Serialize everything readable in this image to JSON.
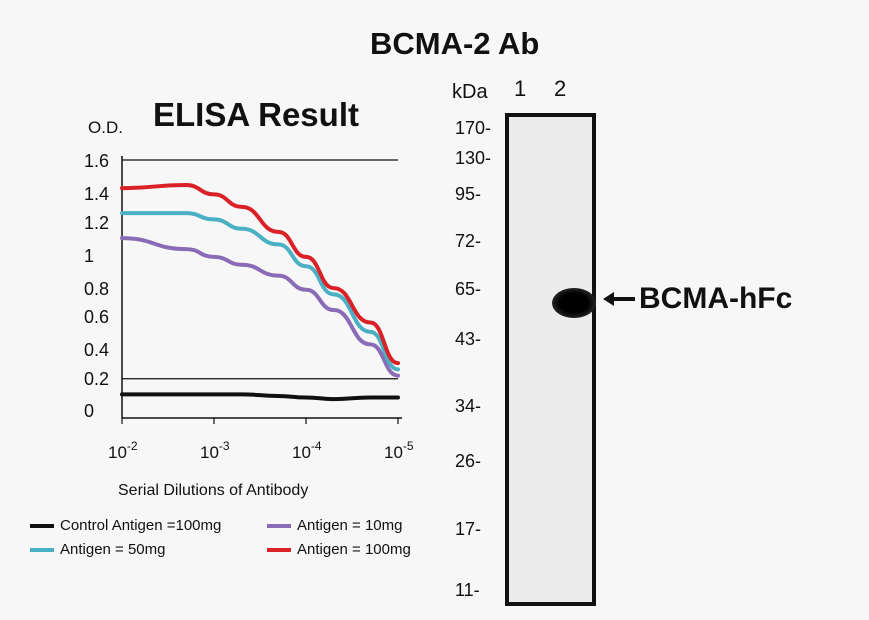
{
  "main_title": "BCMA-2 Ab",
  "chart_data": [
    {
      "type": "line",
      "title": "ELISA Result",
      "ylabel": "O.D.",
      "xlabel": "Serial Dilutions of Antibody",
      "x_ticks": [
        {
          "base": "10",
          "exp": "-2"
        },
        {
          "base": "10",
          "exp": "-3"
        },
        {
          "base": "10",
          "exp": "-4"
        },
        {
          "base": "10",
          "exp": "-5"
        }
      ],
      "x_scale": "log (decreasing concentration)",
      "y_ticks": [
        "1.6",
        "1.4",
        "1.2",
        "1",
        "0.8",
        "0.6",
        "0.4",
        "0.2",
        "0"
      ],
      "ylim": [
        0,
        1.6
      ],
      "grid": "horizontal at 0.2 and 1.6",
      "legend": "bottom",
      "series": [
        {
          "name": "Control Antigen =100mg",
          "color": "#111111",
          "x": [
            0.01,
            0.002,
            0.001,
            0.0005,
            0.0002,
            0.0001,
            5e-05,
            2e-05,
            1e-05
          ],
          "y": [
            0.1,
            0.1,
            0.1,
            0.1,
            0.09,
            0.08,
            0.07,
            0.08,
            0.08
          ]
        },
        {
          "name": "Antigen = 10mg",
          "color": "#8a6bb5",
          "x": [
            0.01,
            0.002,
            0.001,
            0.0005,
            0.0002,
            0.0001,
            5e-05,
            2e-05,
            1e-05
          ],
          "y": [
            1.1,
            1.03,
            0.98,
            0.93,
            0.86,
            0.77,
            0.64,
            0.42,
            0.22
          ]
        },
        {
          "name": "Antigen = 50mg",
          "color": "#4ab0c4",
          "x": [
            0.01,
            0.002,
            0.001,
            0.0005,
            0.0002,
            0.0001,
            5e-05,
            2e-05,
            1e-05
          ],
          "y": [
            1.26,
            1.26,
            1.22,
            1.16,
            1.06,
            0.92,
            0.74,
            0.5,
            0.26
          ]
        },
        {
          "name": "Antigen = 100mg",
          "color": "#d92127",
          "x": [
            0.01,
            0.002,
            0.001,
            0.0005,
            0.0002,
            0.0001,
            5e-05,
            2e-05,
            1e-05
          ],
          "y": [
            1.42,
            1.44,
            1.38,
            1.3,
            1.14,
            0.98,
            0.78,
            0.56,
            0.3
          ]
        }
      ]
    },
    {
      "type": "western-blot",
      "axis_label": "kDa",
      "lanes": [
        "1",
        "2"
      ],
      "mw_markers": [
        "170-",
        "130-",
        "95-",
        "72-",
        "65-",
        "43-",
        "34-",
        "26-",
        "17-",
        "11-"
      ],
      "bands": [
        {
          "lane": "2",
          "label": "BCMA-hFc"
        }
      ]
    }
  ],
  "legend_order": [
    {
      "label": "Control Antigen =100mg",
      "color": "#111111"
    },
    {
      "label": "Antigen = 10mg",
      "color": "#8a6bb5"
    },
    {
      "label": "Antigen = 50mg",
      "color": "#4ab0c4"
    },
    {
      "label": "Antigen = 100mg",
      "color": "#d92127"
    }
  ]
}
